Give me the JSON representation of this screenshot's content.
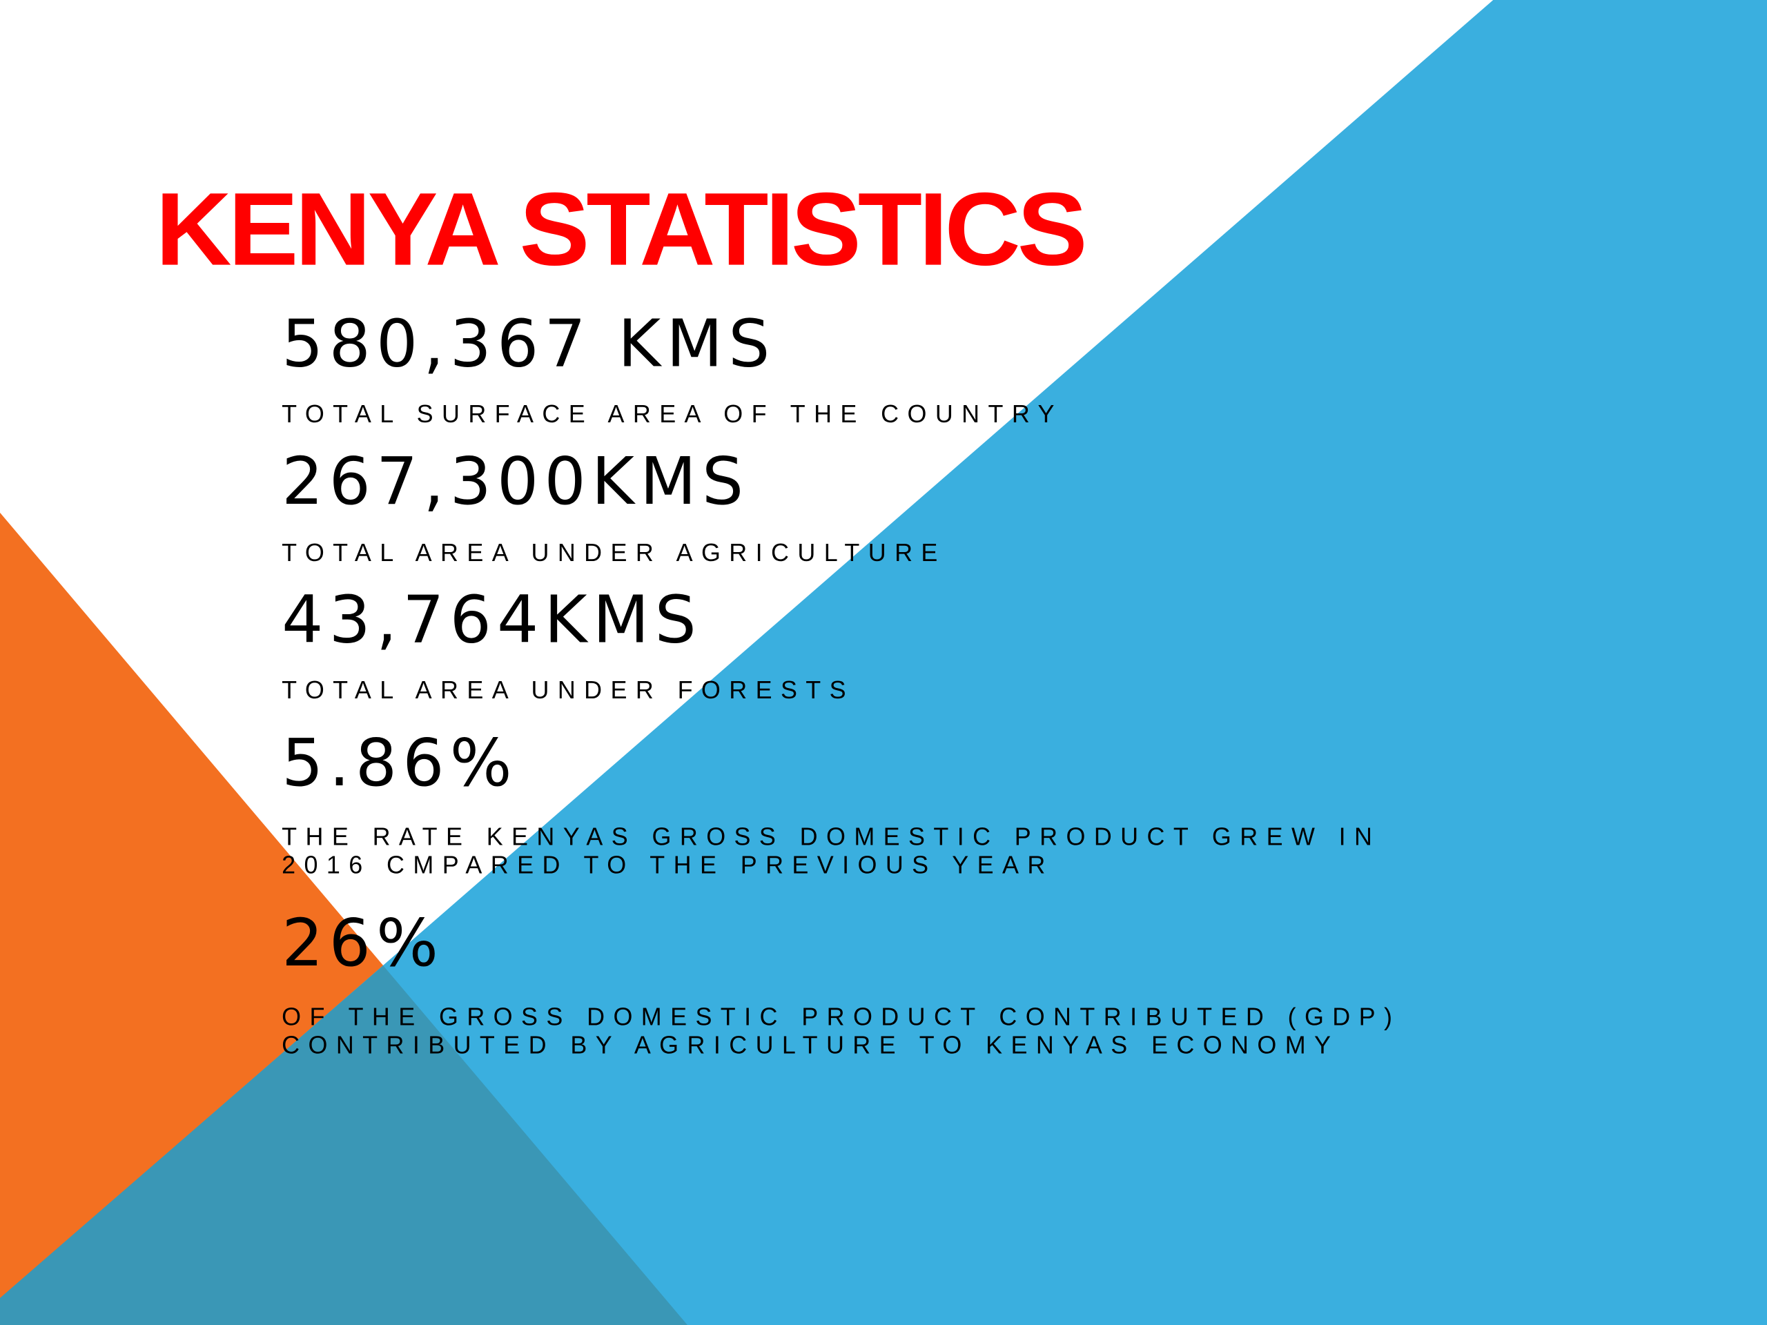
{
  "title": "KENYA STATISTICS",
  "stats": [
    {
      "value": "580,367 KMS",
      "description": [
        "TOTAL SURFACE AREA OF THE COUNTRY"
      ]
    },
    {
      "value": "267,300KMS",
      "description": [
        "TOTAL AREA UNDER AGRICULTURE"
      ]
    },
    {
      "value": "43,764KMS",
      "description": [
        "TOTAL AREA UNDER FORESTS"
      ]
    },
    {
      "value": "5.86%",
      "description": [
        "THE RATE KENYAS GROSS DOMESTIC PRODUCT GREW IN",
        "2016 CMPARED TO THE PREVIOUS YEAR"
      ]
    },
    {
      "value": "26%",
      "description": [
        "OF THE GROSS DOMESTIC PRODUCT CONTRIBUTED (GDP)",
        "CONTRIBUTED BY AGRICULTURE TO KENYAS ECONOMY"
      ]
    }
  ]
}
